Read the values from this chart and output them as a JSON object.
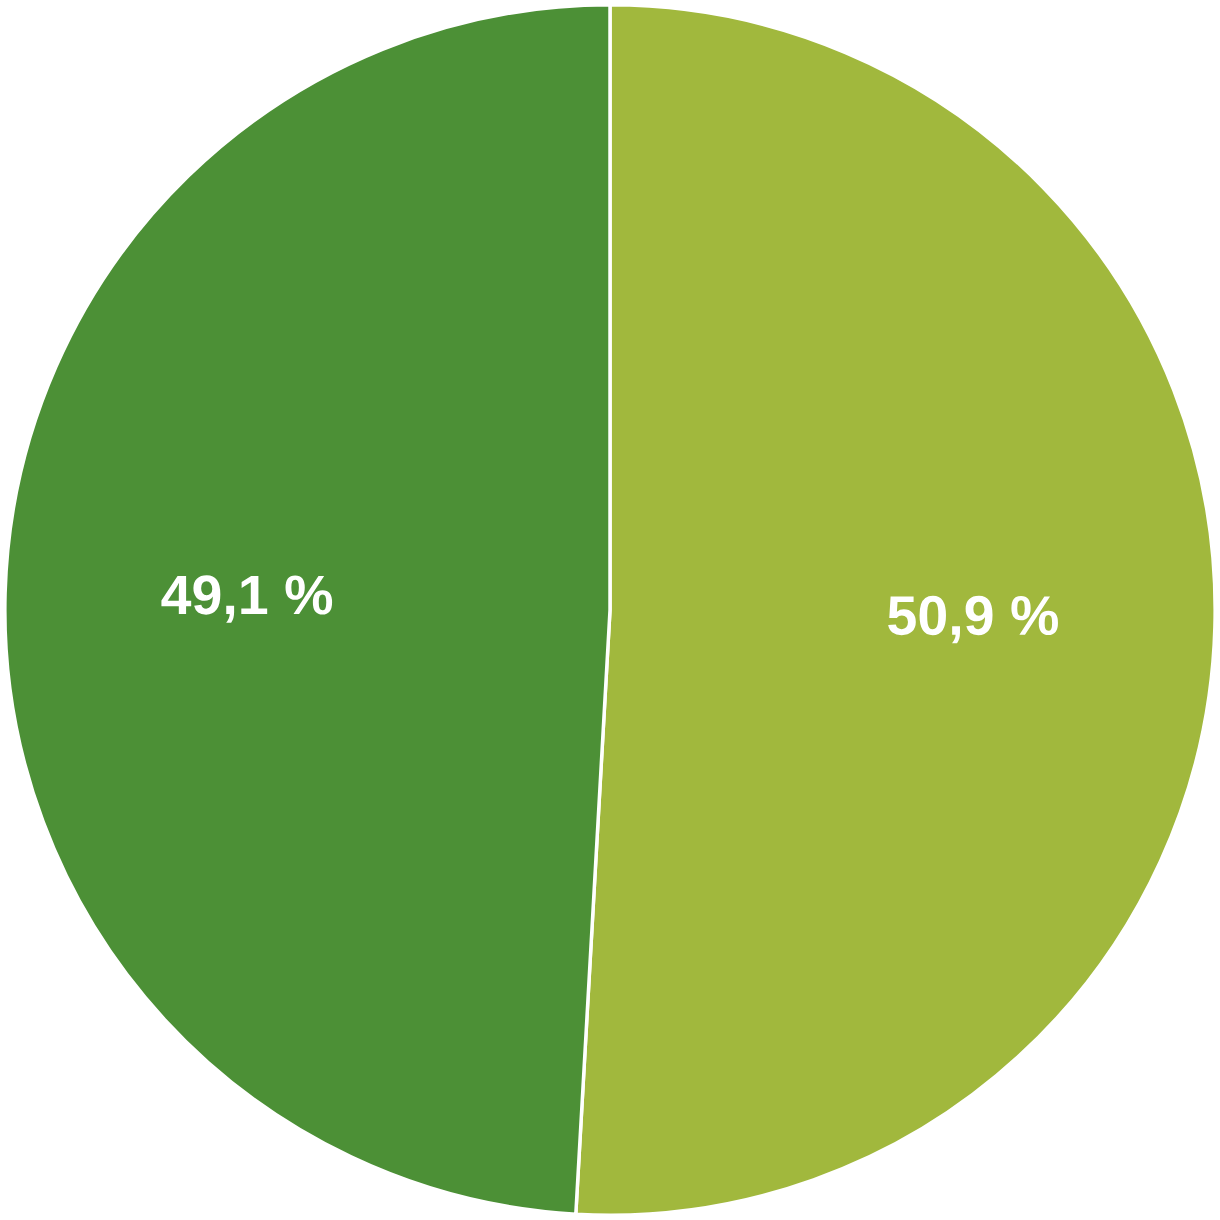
{
  "chart_data": {
    "type": "pie",
    "categories": [
      null,
      null
    ],
    "values": [
      50.9,
      49.1
    ],
    "value_labels": [
      "50,9 %",
      "49,1 %"
    ],
    "colors": [
      "#a1b83d",
      "#4c9036"
    ]
  }
}
